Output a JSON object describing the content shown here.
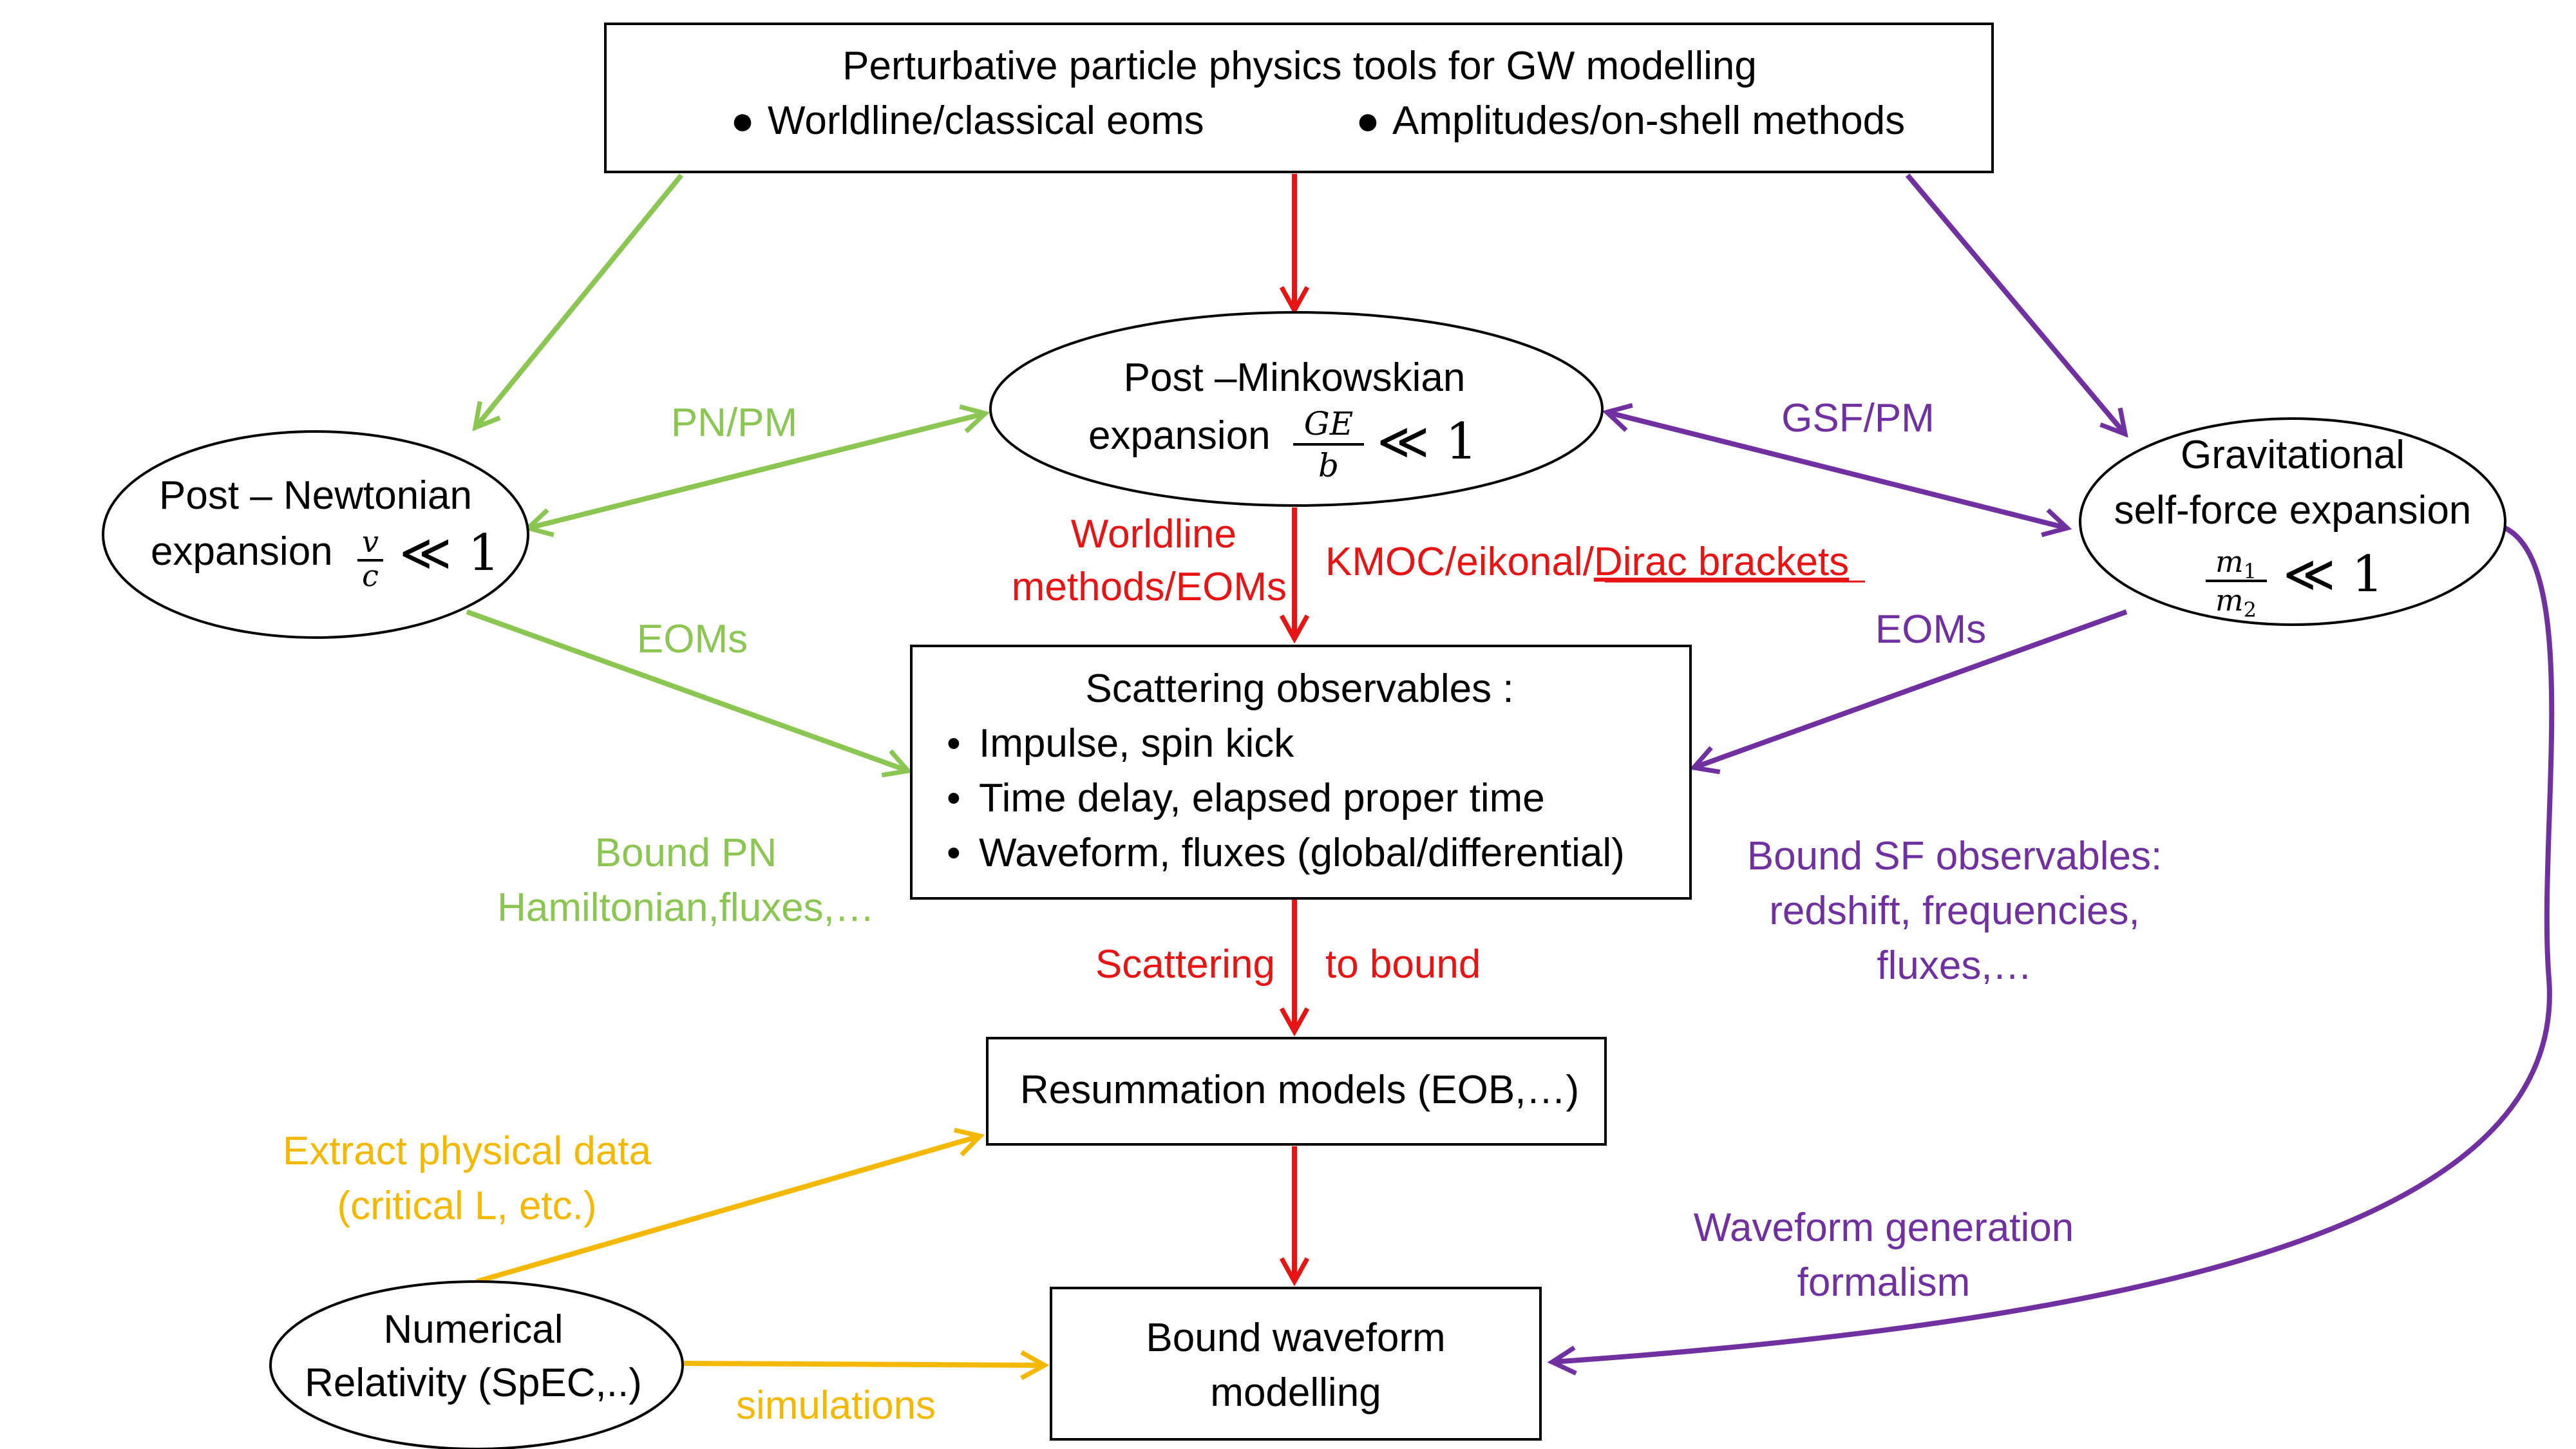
{
  "colors": {
    "black": "#000000",
    "red": "#e81313",
    "green": "#8cc652",
    "purple": "#7030a0",
    "orange": "#f5b800"
  },
  "nodes": {
    "top": {
      "title": "Perturbative particle physics tools for GW modelling",
      "bullet1": "Worldline/classical eoms",
      "bullet2": "Amplitudes/on-shell methods",
      "bullet_glyph": "●"
    },
    "pm": {
      "line1": "Post –Minkowskian",
      "line2": "expansion",
      "num": "GE",
      "den": "b",
      "rel": "≪ 1"
    },
    "pn": {
      "line1": "Post – Newtonian",
      "line2": "expansion",
      "num": "v",
      "den": "c",
      "rel": "≪ 1"
    },
    "gsf": {
      "line1": "Gravitational",
      "line2": "self-force expansion",
      "num": "m",
      "num_sub": "1",
      "den": "m",
      "den_sub": "2",
      "rel": "≪ 1"
    },
    "scattering": {
      "title": "Scattering observables :",
      "items": [
        "Impulse, spin kick",
        "Time delay, elapsed proper time",
        "Waveform, fluxes (global/differential)"
      ],
      "bullet_glyph": "•"
    },
    "resummation": {
      "label": "Resummation models (EOB,…)"
    },
    "bound_waveform": {
      "line1": "Bound waveform",
      "line2": "modelling"
    },
    "numerical": {
      "line1": "Numerical",
      "line2": "Relativity (SpEC,..)"
    }
  },
  "edge_labels": {
    "pn_pm": "PN/PM",
    "gsf_pm": "GSF/PM",
    "worldline": [
      "Worldline",
      "methods/EOMs"
    ],
    "kmoc_prefix": "KMOC/eikonal/",
    "kmoc_link": "Dirac brackets",
    "eoms_left": "EOMs",
    "eoms_right": "EOMs",
    "bound_pn": [
      "Bound PN",
      "Hamiltonian,fluxes,…"
    ],
    "bound_sf": [
      "Bound SF observables:",
      "redshift, frequencies,",
      "fluxes,…"
    ],
    "scattering_left": "Scattering",
    "scattering_right": "to bound",
    "extract": [
      "Extract physical data",
      "(critical L, etc.)"
    ],
    "simulations": "simulations",
    "waveform_gen": [
      "Waveform generation",
      "formalism"
    ]
  }
}
